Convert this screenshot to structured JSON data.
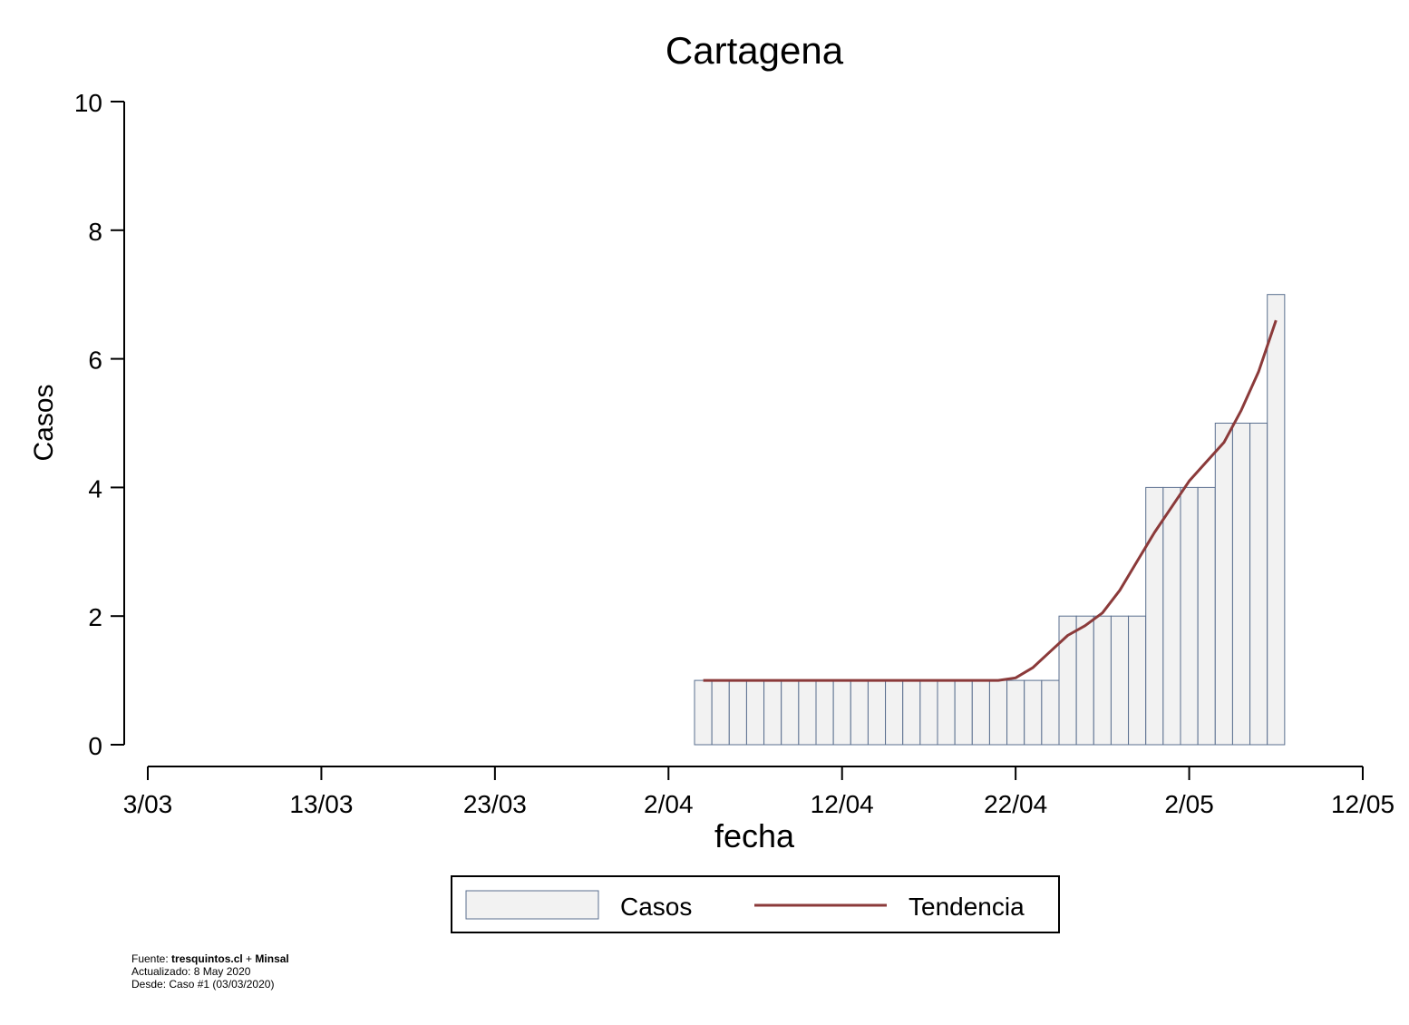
{
  "chart_data": {
    "type": "bar",
    "title": "Cartagena",
    "xlabel": "fecha",
    "ylabel": "Casos",
    "ylim": [
      0,
      10
    ],
    "yticks": [
      0,
      2,
      4,
      6,
      8,
      10
    ],
    "xlim": [
      "2020-03-03",
      "2020-05-12"
    ],
    "xticks": [
      "2020-03-03",
      "2020-03-13",
      "2020-03-23",
      "2020-04-02",
      "2020-04-12",
      "2020-04-22",
      "2020-05-02",
      "2020-05-12"
    ],
    "xtick_labels": [
      "3/03",
      "13/03",
      "23/03",
      "2/04",
      "12/04",
      "22/04",
      "2/05",
      "12/05"
    ],
    "grid": false,
    "legend_position": "bottom",
    "series": [
      {
        "name": "Casos",
        "kind": "bar",
        "color": "#f2f2f2",
        "edge_color": "#5a6f8f",
        "x": [
          "2020-04-04",
          "2020-04-05",
          "2020-04-06",
          "2020-04-07",
          "2020-04-08",
          "2020-04-09",
          "2020-04-10",
          "2020-04-11",
          "2020-04-12",
          "2020-04-13",
          "2020-04-14",
          "2020-04-15",
          "2020-04-16",
          "2020-04-17",
          "2020-04-18",
          "2020-04-19",
          "2020-04-20",
          "2020-04-21",
          "2020-04-22",
          "2020-04-23",
          "2020-04-24",
          "2020-04-25",
          "2020-04-26",
          "2020-04-27",
          "2020-04-28",
          "2020-04-29",
          "2020-04-30",
          "2020-05-01",
          "2020-05-02",
          "2020-05-03",
          "2020-05-04",
          "2020-05-05",
          "2020-05-06",
          "2020-05-07"
        ],
        "values": [
          1,
          1,
          1,
          1,
          1,
          1,
          1,
          1,
          1,
          1,
          1,
          1,
          1,
          1,
          1,
          1,
          1,
          1,
          1,
          1,
          1,
          2,
          2,
          2,
          2,
          2,
          4,
          4,
          4,
          4,
          5,
          5,
          5,
          7
        ]
      },
      {
        "name": "Tendencia",
        "kind": "line",
        "color": "#8b3a3a",
        "x": [
          "2020-04-04",
          "2020-04-05",
          "2020-04-06",
          "2020-04-07",
          "2020-04-08",
          "2020-04-09",
          "2020-04-10",
          "2020-04-11",
          "2020-04-12",
          "2020-04-13",
          "2020-04-14",
          "2020-04-15",
          "2020-04-16",
          "2020-04-17",
          "2020-04-18",
          "2020-04-19",
          "2020-04-20",
          "2020-04-21",
          "2020-04-22",
          "2020-04-23",
          "2020-04-24",
          "2020-04-25",
          "2020-04-26",
          "2020-04-27",
          "2020-04-28",
          "2020-04-29",
          "2020-04-30",
          "2020-05-01",
          "2020-05-02",
          "2020-05-03",
          "2020-05-04",
          "2020-05-05",
          "2020-05-06",
          "2020-05-07"
        ],
        "values": [
          1,
          1,
          1,
          1,
          1,
          1,
          1,
          1,
          1,
          1,
          1,
          1,
          1,
          1,
          1,
          1,
          1,
          1,
          1.04,
          1.2,
          1.45,
          1.7,
          1.85,
          2.05,
          2.4,
          2.85,
          3.3,
          3.7,
          4.1,
          4.4,
          4.7,
          5.2,
          5.8,
          6.6
        ]
      }
    ]
  },
  "footer": {
    "source_label": "Fuente: ",
    "source_site": "tresquintos.cl",
    "source_sep": " + ",
    "source_org": "Minsal",
    "updated": "Actualizado: 8 May 2020",
    "since": "Desde: Caso #1  (03/03/2020)"
  }
}
